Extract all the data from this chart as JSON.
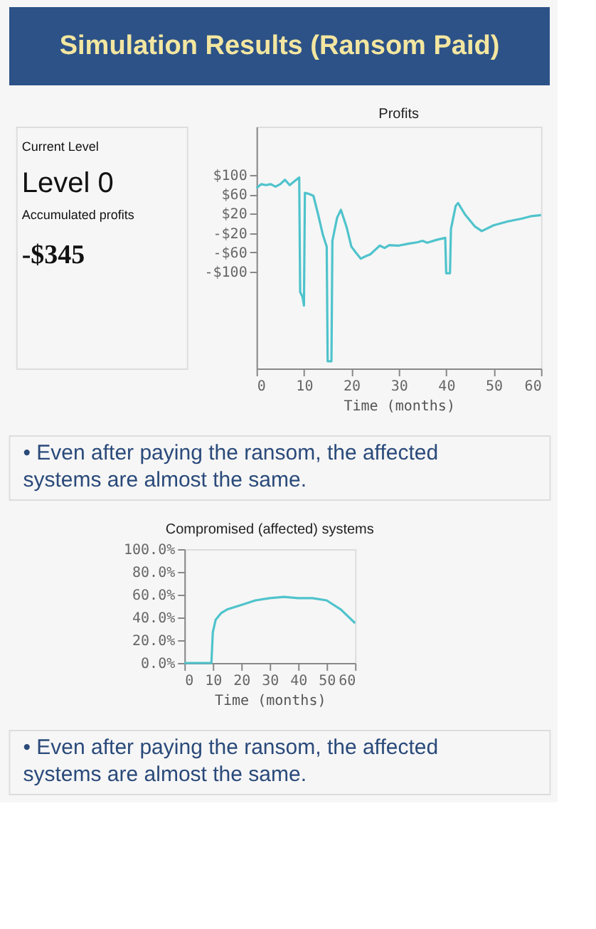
{
  "chart_data": [
    {
      "type": "other",
      "title": "Simulation Results (Ransom Paid)",
      "annotations": [
        "Current Level",
        "Level 0",
        "Accumulated profits",
        "-$345"
      ]
    },
    {
      "type": "line",
      "title": "Profits",
      "xlabel": "Time (months)",
      "x": [
        0,
        1,
        2,
        3,
        4,
        5,
        6,
        7,
        8,
        9,
        9.2,
        9.7,
        10,
        10.2,
        11,
        12,
        13,
        14,
        14.8,
        15,
        15.8,
        16,
        17,
        17.8,
        19,
        20,
        21,
        22,
        23,
        24,
        25,
        26,
        27,
        28,
        30,
        32,
        34,
        35,
        36,
        38,
        39.8,
        40,
        40.8,
        41,
        42,
        42.5,
        44,
        46,
        47.5,
        50,
        53,
        56,
        58,
        60
      ],
      "series": [
        {
          "color": "#4fc3cc",
          "values": [
            73,
            81,
            79,
            81,
            76,
            81,
            90,
            79,
            87,
            95,
            -142,
            -152,
            -170,
            63,
            61,
            57,
            18,
            -24,
            -48,
            -285,
            -285,
            -36,
            12,
            28,
            -8,
            -48,
            -61,
            -73,
            -68,
            -64,
            -55,
            -46,
            -51,
            -45,
            -46,
            -42,
            -39,
            -36,
            -40,
            -34,
            -30,
            -103,
            -103,
            -12,
            36,
            42,
            18,
            -6,
            -16,
            -4,
            4,
            10,
            15,
            17
          ]
        }
      ],
      "xlim": [
        0,
        60
      ],
      "xticks": [
        0,
        10,
        20,
        30,
        40,
        50,
        60
      ],
      "ylim": [
        -300,
        200
      ],
      "yticks": [
        {
          "value": 100,
          "label": "$100"
        },
        {
          "value": 60,
          "label": "$60"
        },
        {
          "value": 20,
          "label": "$20"
        },
        {
          "value": -20,
          "label": "-$20"
        },
        {
          "value": -60,
          "label": "-$60"
        },
        {
          "value": -100,
          "label": "-$100"
        }
      ],
      "grid": false,
      "legend": false,
      "annotations": [
        "• Even after paying the ransom, the affected systems are almost the same."
      ]
    },
    {
      "type": "line",
      "title": "Compromised (affected) systems",
      "xlabel": "Time (months)",
      "x": [
        0,
        9.5,
        10,
        11,
        13,
        15,
        20,
        25,
        30,
        35,
        40,
        45,
        50,
        55,
        60
      ],
      "series": [
        {
          "color": "#4fc3cc",
          "values": [
            0,
            0,
            27,
            38,
            44,
            47,
            51,
            55,
            57,
            58,
            57,
            57,
            55,
            47,
            35
          ]
        }
      ],
      "xlim": [
        0,
        60
      ],
      "xticks": [
        0,
        10,
        20,
        30,
        40,
        50,
        60
      ],
      "ylim": [
        0,
        100
      ],
      "yticks": [
        {
          "value": 0,
          "label": "0.0%"
        },
        {
          "value": 20,
          "label": "20.0%"
        },
        {
          "value": 40,
          "label": "40.0%"
        },
        {
          "value": 60,
          "label": "60.0%"
        },
        {
          "value": 80,
          "label": "80.0%"
        },
        {
          "value": 100,
          "label": "100.0%"
        }
      ],
      "grid": false,
      "legend": false,
      "annotations": [
        "• Even after paying the ransom, the affected systems are almost the same."
      ]
    }
  ]
}
